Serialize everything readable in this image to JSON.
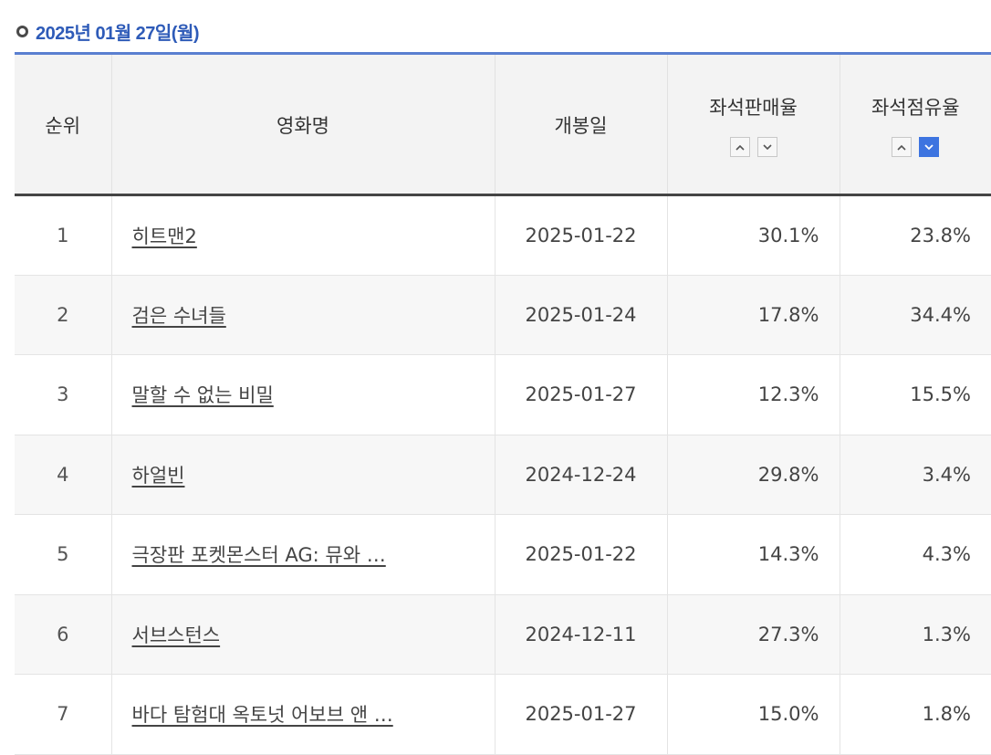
{
  "header": {
    "date": "2025년 01월 27일(월)"
  },
  "table": {
    "columns": {
      "rank": "순위",
      "title": "영화명",
      "release": "개봉일",
      "sales": "좌석판매율",
      "share": "좌석점유율"
    },
    "sort": {
      "active_column": "share",
      "active_direction": "desc"
    },
    "rows": [
      {
        "rank": "1",
        "title": "히트맨2",
        "release": "2025-01-22",
        "sales": "30.1%",
        "share": "23.8%"
      },
      {
        "rank": "2",
        "title": "검은 수녀들",
        "release": "2025-01-24",
        "sales": "17.8%",
        "share": "34.4%"
      },
      {
        "rank": "3",
        "title": "말할 수 없는 비밀",
        "release": "2025-01-27",
        "sales": "12.3%",
        "share": "15.5%"
      },
      {
        "rank": "4",
        "title": "하얼빈",
        "release": "2024-12-24",
        "sales": "29.8%",
        "share": "3.4%"
      },
      {
        "rank": "5",
        "title": "극장판 포켓몬스터 AG: 뮤와 …",
        "release": "2025-01-22",
        "sales": "14.3%",
        "share": "4.3%"
      },
      {
        "rank": "6",
        "title": "서브스턴스",
        "release": "2024-12-11",
        "sales": "27.3%",
        "share": "1.3%"
      },
      {
        "rank": "7",
        "title": "바다 탐험대 옥토넛 어보브 앤 …",
        "release": "2025-01-27",
        "sales": "15.0%",
        "share": "1.8%"
      }
    ]
  },
  "colors": {
    "accent": "#2e5bb8",
    "sort_active": "#3d74e0",
    "header_bg": "#f3f3f3"
  },
  "icons": {
    "sort_up": "chevron-up-icon",
    "sort_down": "chevron-down-icon",
    "date_marker": "ring-icon"
  }
}
